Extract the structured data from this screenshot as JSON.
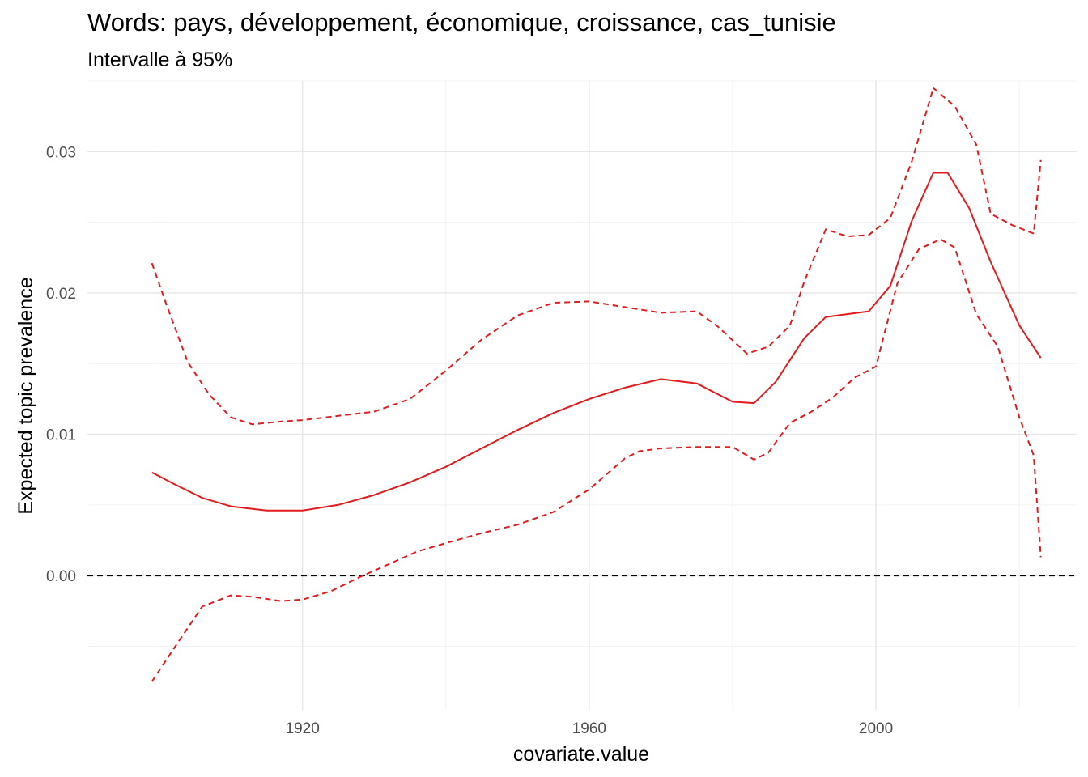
{
  "chart_data": {
    "type": "line",
    "title": "Words: pays, développement, économique, croissance, cas_tunisie",
    "subtitle": "Intervalle à 95%",
    "xlabel": "covariate.value",
    "ylabel": "Expected topic prevalence",
    "xlim": [
      1890,
      2028
    ],
    "ylim": [
      -0.0095,
      0.035
    ],
    "x_ticks": [
      1920,
      1960,
      2000
    ],
    "x_tick_labels": [
      "1920",
      "1960",
      "2000"
    ],
    "y_ticks": [
      0.0,
      0.01,
      0.02,
      0.03
    ],
    "y_tick_labels": [
      "0.00",
      "0.01",
      "0.02",
      "0.03"
    ],
    "grid": true,
    "reference_line": {
      "y": 0.0,
      "style": "dashed",
      "color": "#000000"
    },
    "series": [
      {
        "role": "estimate",
        "style": "solid",
        "color": "#e41a1c",
        "x": [
          1899,
          1902,
          1906,
          1910,
          1915,
          1920,
          1925,
          1930,
          1935,
          1940,
          1945,
          1950,
          1955,
          1960,
          1965,
          1970,
          1975,
          1980,
          1983,
          1986,
          1990,
          1993,
          1996,
          1999,
          2002,
          2005,
          2008,
          2010,
          2013,
          2016,
          2020,
          2023
        ],
        "y": [
          0.0073,
          0.0065,
          0.0055,
          0.0049,
          0.0046,
          0.0046,
          0.005,
          0.0057,
          0.0066,
          0.0077,
          0.009,
          0.0103,
          0.0115,
          0.0125,
          0.0133,
          0.0139,
          0.0136,
          0.0123,
          0.0122,
          0.0137,
          0.0168,
          0.0183,
          0.0185,
          0.0187,
          0.0205,
          0.0251,
          0.0285,
          0.0285,
          0.026,
          0.0222,
          0.0177,
          0.0154
        ]
      },
      {
        "role": "upper",
        "style": "dashed",
        "color": "#e41a1c",
        "x": [
          1899,
          1901,
          1904,
          1907,
          1910,
          1913,
          1917,
          1920,
          1925,
          1930,
          1935,
          1940,
          1945,
          1950,
          1955,
          1960,
          1965,
          1970,
          1975,
          1978,
          1982,
          1985,
          1988,
          1990,
          1993,
          1996,
          1999,
          2002,
          2005,
          2008,
          2011,
          2014,
          2016,
          2019,
          2022,
          2023
        ],
        "y": [
          0.0221,
          0.0192,
          0.0151,
          0.0128,
          0.0112,
          0.0107,
          0.0109,
          0.011,
          0.0113,
          0.0116,
          0.0125,
          0.0145,
          0.0167,
          0.0184,
          0.0193,
          0.0194,
          0.019,
          0.0186,
          0.0187,
          0.0176,
          0.0157,
          0.0162,
          0.0177,
          0.0208,
          0.0245,
          0.024,
          0.0241,
          0.0253,
          0.0293,
          0.0345,
          0.0332,
          0.0305,
          0.0256,
          0.0248,
          0.0242,
          0.0294
        ]
      },
      {
        "role": "lower",
        "style": "dashed",
        "color": "#e41a1c",
        "x": [
          1899,
          1902,
          1906,
          1910,
          1913,
          1917,
          1920,
          1924,
          1928,
          1932,
          1936,
          1940,
          1945,
          1950,
          1955,
          1960,
          1965,
          1967,
          1970,
          1975,
          1980,
          1983,
          1985,
          1988,
          1991,
          1994,
          1997,
          2000,
          2003,
          2006,
          2009,
          2011,
          2014,
          2017,
          2020,
          2022,
          2023
        ],
        "y": [
          -0.0075,
          -0.0052,
          -0.0022,
          -0.0014,
          -0.0015,
          -0.0018,
          -0.0017,
          -0.0011,
          -0.0001,
          0.0008,
          0.0017,
          0.0023,
          0.003,
          0.0036,
          0.0045,
          0.0061,
          0.0083,
          0.0088,
          0.009,
          0.0091,
          0.0091,
          0.0082,
          0.0087,
          0.0108,
          0.0116,
          0.0126,
          0.014,
          0.0148,
          0.0207,
          0.0231,
          0.0238,
          0.0232,
          0.0185,
          0.0162,
          0.0112,
          0.0085,
          0.0013
        ]
      }
    ]
  }
}
